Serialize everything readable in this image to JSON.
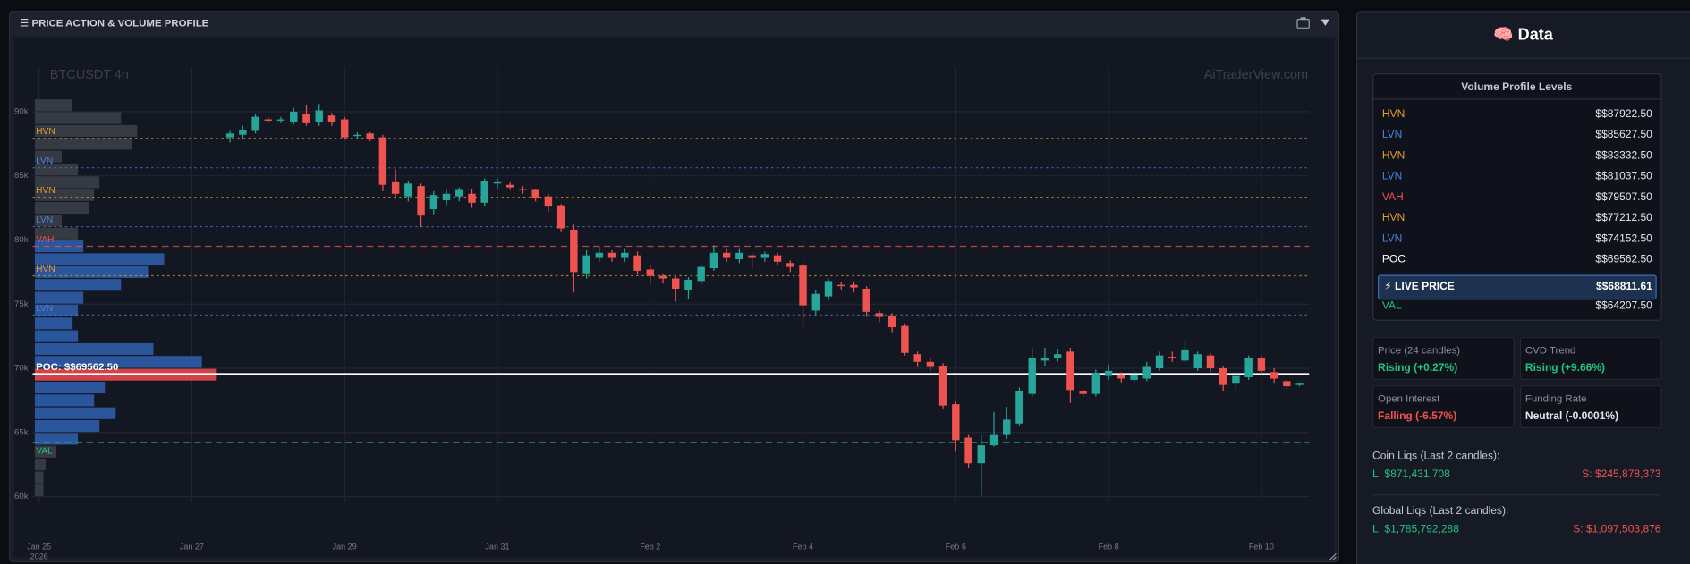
{
  "header": {
    "title": "☰ PRICE ACTION & VOLUME PROFILE"
  },
  "chart_data": {
    "type": "candlestick",
    "title": "BTCUSDT 4h",
    "watermark": "AiTraderView.com",
    "xlim": [
      -2,
      399
    ],
    "ylim": [
      59500,
      93500
    ],
    "xticks": [
      {
        "value": 0,
        "label": "Jan 25"
      },
      {
        "value": 48,
        "label": "Jan 27"
      },
      {
        "value": 96,
        "label": "Jan 29"
      },
      {
        "value": 144,
        "label": "Jan 31"
      },
      {
        "value": 192,
        "label": "Feb 2"
      },
      {
        "value": 240,
        "label": "Feb 4"
      },
      {
        "value": 288,
        "label": "Feb 6"
      },
      {
        "value": 336,
        "label": "Feb 8"
      },
      {
        "value": 384,
        "label": "Feb 10"
      }
    ],
    "xtick_sublabel": "2026",
    "yticks": [
      {
        "value": 60000,
        "label": "60k"
      },
      {
        "value": 65000,
        "label": "65k"
      },
      {
        "value": 70000,
        "label": "70k"
      },
      {
        "value": 75000,
        "label": "75k"
      },
      {
        "value": 80000,
        "label": "80k"
      },
      {
        "value": 85000,
        "label": "85k"
      },
      {
        "value": 90000,
        "label": "90k"
      }
    ],
    "grid": true,
    "up_color": "#26a69a",
    "down_color": "#ef5350",
    "candles": {
      "x": [
        60,
        64,
        68,
        72,
        76,
        80,
        84,
        88,
        92,
        96,
        100,
        104,
        108,
        112,
        116,
        120,
        124,
        128,
        132,
        136,
        140,
        144,
        148,
        152,
        156,
        160,
        164,
        168,
        172,
        176,
        180,
        184,
        188,
        192,
        196,
        200,
        204,
        208,
        212,
        216,
        220,
        224,
        228,
        232,
        236,
        240,
        244,
        248,
        252,
        256,
        260,
        264,
        268,
        272,
        276,
        280,
        284,
        288,
        292,
        296,
        300,
        304,
        308,
        312,
        316,
        320,
        324,
        328,
        332,
        336,
        340,
        344,
        348,
        352,
        356,
        360,
        364,
        368,
        372,
        376,
        380,
        384,
        388,
        392,
        396
      ],
      "open": [
        88000,
        88200,
        88500,
        89400,
        89300,
        89200,
        89800,
        89200,
        89700,
        89400,
        88100,
        88300,
        88000,
        84500,
        83400,
        84200,
        82400,
        83100,
        83400,
        83600,
        82900,
        84400,
        84300,
        84000,
        83900,
        83400,
        82700,
        80800,
        77400,
        78600,
        79000,
        78600,
        78800,
        77700,
        77200,
        77000,
        76100,
        76800,
        77800,
        79000,
        78500,
        78800,
        78600,
        78800,
        78200,
        78000,
        74500,
        75600,
        76500,
        76500,
        76200,
        74300,
        74100,
        73300,
        71100,
        70500,
        70200,
        67200,
        64600,
        62600,
        64000,
        64800,
        65700,
        68000,
        70600,
        70800,
        71300,
        68200,
        68000,
        69400,
        69500,
        69100,
        69200,
        70000,
        70900,
        70600,
        70000,
        71000,
        70000,
        68800,
        69300,
        70800,
        69700,
        69000,
        68700
      ],
      "high": [
        88500,
        88900,
        89800,
        89600,
        89600,
        90300,
        90500,
        90600,
        89900,
        89600,
        88400,
        88400,
        88200,
        85500,
        84600,
        84400,
        83800,
        83900,
        84100,
        84000,
        84800,
        84800,
        84500,
        84200,
        84000,
        83600,
        82800,
        81200,
        79200,
        79500,
        79200,
        79300,
        79100,
        78000,
        77400,
        77200,
        77100,
        78100,
        79600,
        79300,
        79300,
        79000,
        79100,
        79000,
        78400,
        78200,
        76100,
        77000,
        76700,
        76700,
        76400,
        74500,
        74300,
        73500,
        71300,
        70800,
        70400,
        67400,
        64800,
        64800,
        66600,
        67000,
        68500,
        71600,
        71600,
        71500,
        71600,
        68400,
        69900,
        70300,
        69700,
        69800,
        70500,
        71300,
        71300,
        72200,
        71300,
        71200,
        70200,
        69600,
        71000,
        71000,
        70000,
        69100,
        68900
      ],
      "low": [
        87600,
        87900,
        88300,
        89100,
        89100,
        89000,
        88900,
        88900,
        88900,
        87800,
        87900,
        87700,
        83800,
        83200,
        83000,
        81000,
        82000,
        82700,
        83000,
        82500,
        82600,
        84000,
        83900,
        83600,
        83000,
        82200,
        80600,
        75900,
        77000,
        78300,
        78300,
        78300,
        77300,
        76600,
        76600,
        75200,
        75400,
        76500,
        77600,
        78300,
        78200,
        77800,
        78300,
        78000,
        77500,
        73200,
        74200,
        75300,
        76100,
        75900,
        74000,
        73600,
        72800,
        71000,
        70100,
        69800,
        66800,
        63500,
        62200,
        60100,
        63900,
        64500,
        65500,
        67800,
        70200,
        70500,
        67300,
        67800,
        67800,
        69100,
        68900,
        68900,
        69000,
        69800,
        70500,
        70400,
        69800,
        69700,
        68200,
        68300,
        69100,
        69500,
        68800,
        68400,
        68600
      ],
      "close": [
        88300,
        88600,
        89600,
        89300,
        89400,
        90000,
        89100,
        90100,
        89200,
        88000,
        88200,
        87900,
        84300,
        83600,
        84400,
        81900,
        83500,
        83600,
        83900,
        82900,
        84600,
        84500,
        84100,
        83900,
        83300,
        82600,
        80900,
        77500,
        78800,
        79000,
        78600,
        79000,
        77600,
        77200,
        77000,
        76200,
        76900,
        77900,
        79000,
        78600,
        79000,
        78600,
        78900,
        78300,
        77900,
        74900,
        75800,
        76800,
        76400,
        76300,
        74400,
        74000,
        73200,
        71200,
        70500,
        70100,
        67100,
        64400,
        62600,
        64000,
        64800,
        66000,
        68200,
        70800,
        70800,
        71100,
        68300,
        68000,
        69600,
        69800,
        69200,
        69500,
        70100,
        71000,
        70800,
        71400,
        71100,
        70000,
        68700,
        69400,
        70800,
        69800,
        69200,
        68600,
        68800
      ]
    },
    "volume_profile": {
      "bins": [
        60000,
        61000,
        62000,
        63000,
        64000,
        65000,
        66000,
        67000,
        68000,
        69000,
        70000,
        71000,
        72000,
        73000,
        74000,
        75000,
        76000,
        77000,
        78000,
        79000,
        80000,
        81000,
        82000,
        83000,
        84000,
        85000,
        86000,
        87000,
        88000,
        89000,
        90000,
        91000
      ],
      "values": [
        8,
        8,
        10,
        20,
        40,
        60,
        75,
        55,
        65,
        168,
        155,
        110,
        40,
        35,
        40,
        45,
        80,
        105,
        120,
        45,
        40,
        25,
        50,
        55,
        60,
        40,
        25,
        90,
        95,
        80,
        35
      ],
      "colors": {
        "outside": "#3a3e47",
        "value_area": "#2f5da8",
        "poc": "#e5484d"
      }
    },
    "levels": [
      {
        "type": "HVN",
        "value": 87922.5,
        "label": "$$87922.50",
        "color": "#e59a2d"
      },
      {
        "type": "LVN",
        "value": 85627.5,
        "label": "$$85627.50",
        "color": "#4a7fe0"
      },
      {
        "type": "HVN",
        "value": 83332.5,
        "label": "$$83332.50",
        "color": "#e59a2d"
      },
      {
        "type": "LVN",
        "value": 81037.5,
        "label": "$$81037.50",
        "color": "#4a7fe0"
      },
      {
        "type": "VAH",
        "value": 79507.5,
        "label": "$$79507.50",
        "color": "#ef5350"
      },
      {
        "type": "HVN",
        "value": 77212.5,
        "label": "$$77212.50",
        "color": "#e59a2d"
      },
      {
        "type": "LVN",
        "value": 74152.5,
        "label": "$$74152.50",
        "color": "#4a7fe0"
      },
      {
        "type": "POC",
        "value": 69562.5,
        "label": "$$69562.50",
        "color": "#ffffff",
        "chart_label": "POC: $$69562.50"
      },
      {
        "type": "VAL",
        "value": 64207.5,
        "label": "$$64207.50",
        "color": "#26c281"
      }
    ]
  },
  "side_panel": {
    "title": "🧠 Data",
    "levels_title": "Volume Profile Levels",
    "live_price": {
      "label": "⚡ LIVE PRICE",
      "value": 68811.61,
      "value_label": "$$68811.61"
    },
    "stats": [
      {
        "label": "Price (24 candles)",
        "value": "Rising (+0.27%)",
        "color": "#26c281"
      },
      {
        "label": "CVD Trend",
        "value": "Rising (+9.66%)",
        "color": "#26c281"
      },
      {
        "label": "Open Interest",
        "value": "Falling (-6.57%)",
        "color": "#ef5350"
      },
      {
        "label": "Funding Rate",
        "value": "Neutral (-0.0001%)",
        "color": "#e6e8ee"
      }
    ],
    "liquidations": [
      {
        "title": "Coin Liqs (Last 2 candles):",
        "long": "L: $871,431,708",
        "short": "S: $245,878,373"
      },
      {
        "title": "Global Liqs (Last 2 candles):",
        "long": "L: $1,785,792,288",
        "short": "S: $1,097,503,876"
      }
    ]
  }
}
